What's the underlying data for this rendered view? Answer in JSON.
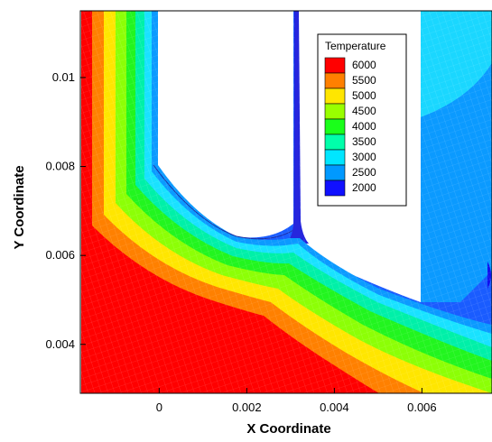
{
  "chart_data": {
    "type": "heatmap",
    "title": "",
    "xlabel": "X Coordinate",
    "ylabel": "Y Coordinate",
    "xlim": [
      -0.0018,
      0.0076
    ],
    "ylim": [
      0.0029,
      0.0115
    ],
    "x_ticks": [
      {
        "value": 0,
        "label": "0"
      },
      {
        "value": 0.002,
        "label": "0.002"
      },
      {
        "value": 0.004,
        "label": "0.004"
      },
      {
        "value": 0.006,
        "label": "0.006"
      }
    ],
    "y_ticks": [
      {
        "value": 0.004,
        "label": "0.004"
      },
      {
        "value": 0.006,
        "label": "0.006"
      },
      {
        "value": 0.008,
        "label": "0.008"
      },
      {
        "value": 0.01,
        "label": "0.01"
      }
    ],
    "colorbar": {
      "title": "Temperature",
      "placement": "top-right",
      "levels": [
        {
          "value": 6000,
          "label": "6000",
          "color": "#ff0000"
        },
        {
          "value": 5500,
          "label": "5500",
          "color": "#ff8000"
        },
        {
          "value": 5000,
          "label": "5000",
          "color": "#ffe600"
        },
        {
          "value": 4500,
          "label": "4500",
          "color": "#99ff00"
        },
        {
          "value": 4000,
          "label": "4000",
          "color": "#1aff1a"
        },
        {
          "value": 3500,
          "label": "3500",
          "color": "#00ffaa"
        },
        {
          "value": 3000,
          "label": "3000",
          "color": "#00e6ff"
        },
        {
          "value": 2500,
          "label": "2500",
          "color": "#0099ff"
        },
        {
          "value": 2000,
          "label": "2000",
          "color": "#1010ff"
        }
      ]
    },
    "grid": false
  }
}
